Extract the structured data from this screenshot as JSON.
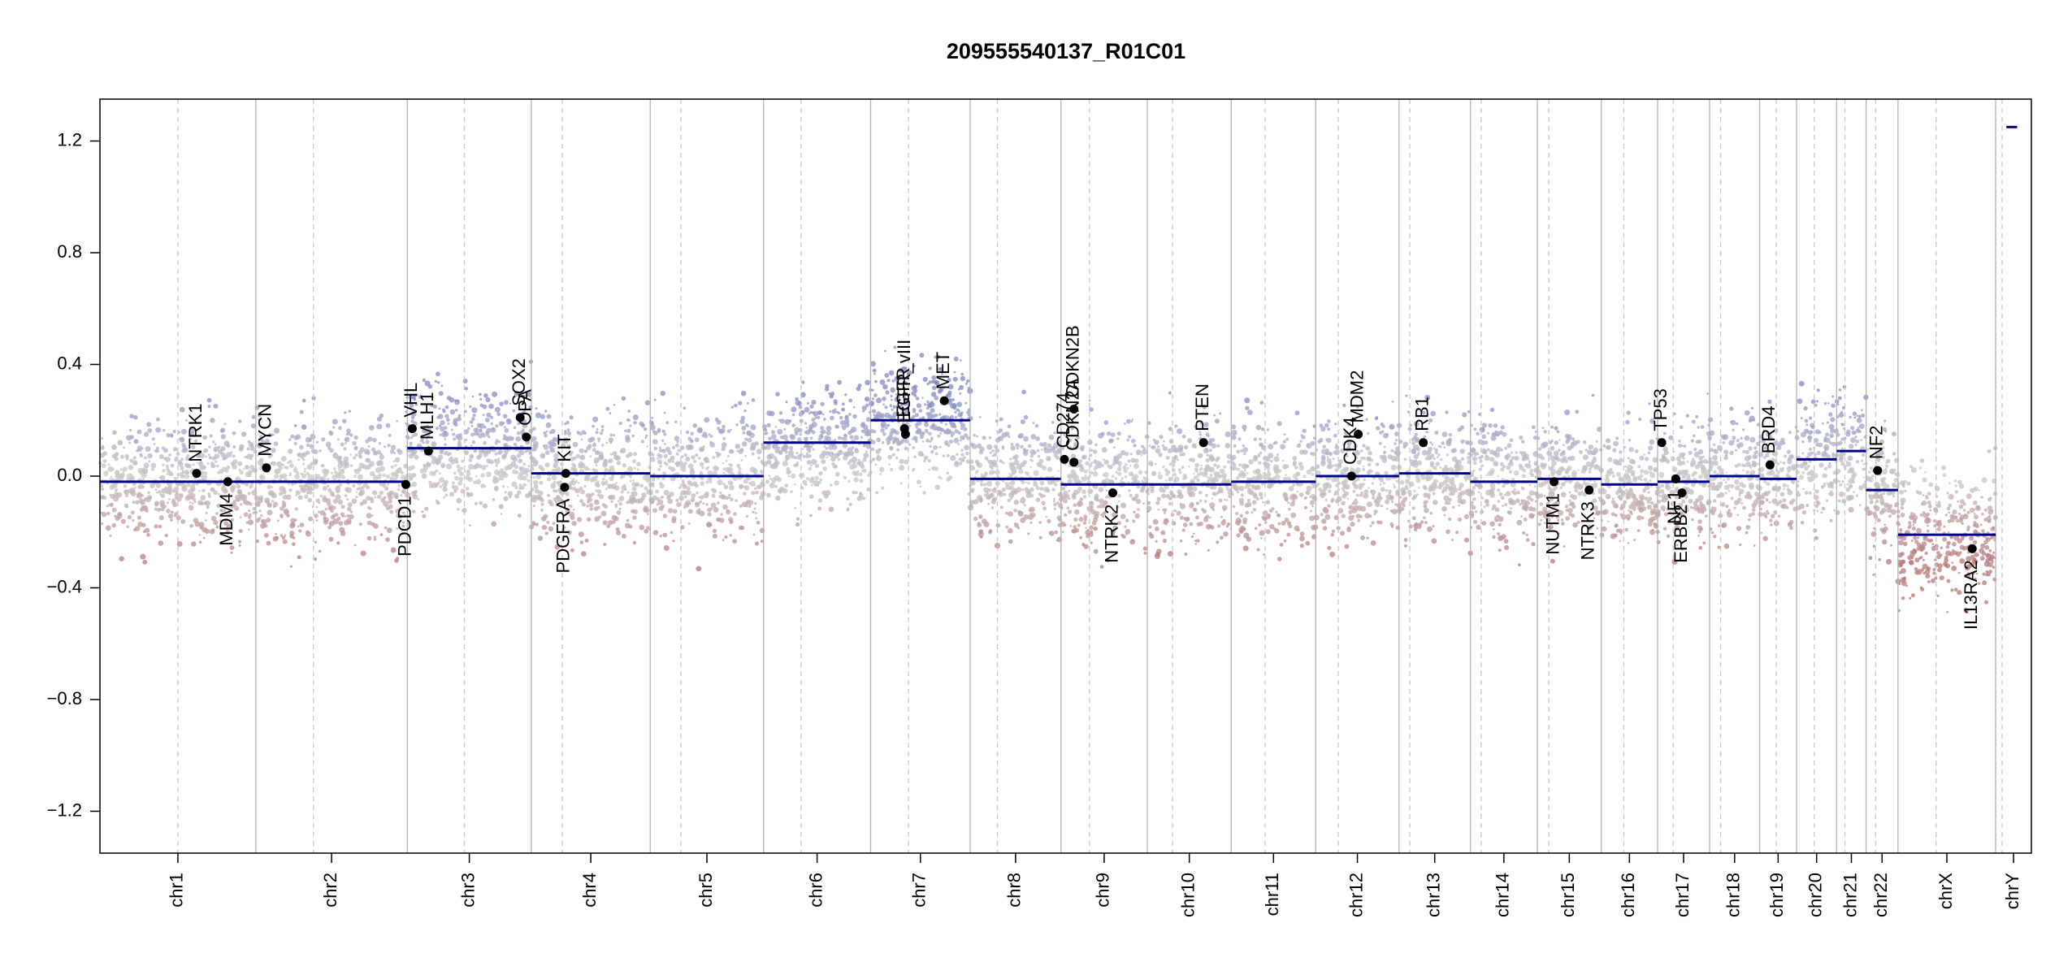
{
  "chart_data": {
    "type": "scatter",
    "title": "209555540137_R01C01",
    "xlabel": "",
    "ylabel": "",
    "ylim": [
      -1.35,
      1.35
    ],
    "y_ticks": [
      "1.2",
      "0.8",
      "0.4",
      "0.0",
      "−0.4",
      "−0.8",
      "−1.2"
    ],
    "y_tick_values": [
      1.2,
      0.8,
      0.4,
      0.0,
      -0.4,
      -0.8,
      -1.2
    ],
    "grid": false,
    "colors": {
      "gain": "#8088c4",
      "neutral": "#c8c8c8",
      "loss": "#b87878",
      "segment": "#00008b",
      "gene_point": "#000000",
      "chrom_line": "#b3b3b3",
      "centromere_line": "#c8c8c8"
    },
    "chromosomes": [
      {
        "name": "chr1",
        "size": 249,
        "cen": 0.5,
        "segments": [
          {
            "from": 0,
            "to": 1,
            "value": -0.02
          }
        ]
      },
      {
        "name": "chr2",
        "size": 242,
        "cen": 0.38,
        "segments": [
          {
            "from": 0,
            "to": 1,
            "value": -0.02
          }
        ]
      },
      {
        "name": "chr3",
        "size": 198,
        "cen": 0.46,
        "segments": [
          {
            "from": 0,
            "to": 1,
            "value": 0.1
          }
        ]
      },
      {
        "name": "chr4",
        "size": 190,
        "cen": 0.26,
        "segments": [
          {
            "from": 0,
            "to": 1,
            "value": 0.01
          }
        ]
      },
      {
        "name": "chr5",
        "size": 181,
        "cen": 0.27,
        "segments": [
          {
            "from": 0,
            "to": 1,
            "value": 0.0
          }
        ]
      },
      {
        "name": "chr6",
        "size": 171,
        "cen": 0.35,
        "segments": [
          {
            "from": 0,
            "to": 1,
            "value": 0.12
          }
        ]
      },
      {
        "name": "chr7",
        "size": 159,
        "cen": 0.38,
        "segments": [
          {
            "from": 0,
            "to": 1,
            "value": 0.2
          }
        ]
      },
      {
        "name": "chr8",
        "size": 145,
        "cen": 0.3,
        "segments": [
          {
            "from": 0,
            "to": 1,
            "value": -0.01
          }
        ]
      },
      {
        "name": "chr9",
        "size": 138,
        "cen": 0.33,
        "segments": [
          {
            "from": 0,
            "to": 1,
            "value": -0.03
          }
        ]
      },
      {
        "name": "chr10",
        "size": 134,
        "cen": 0.3,
        "segments": [
          {
            "from": 0,
            "to": 1,
            "value": -0.03
          }
        ]
      },
      {
        "name": "chr11",
        "size": 135,
        "cen": 0.4,
        "segments": [
          {
            "from": 0,
            "to": 1,
            "value": -0.02
          }
        ]
      },
      {
        "name": "chr12",
        "size": 133,
        "cen": 0.27,
        "segments": [
          {
            "from": 0,
            "to": 1,
            "value": 0.0
          }
        ]
      },
      {
        "name": "chr13",
        "size": 114,
        "cen": 0.15,
        "segments": [
          {
            "from": 0,
            "to": 1,
            "value": 0.01
          }
        ]
      },
      {
        "name": "chr14",
        "size": 107,
        "cen": 0.16,
        "segments": [
          {
            "from": 0,
            "to": 1,
            "value": -0.02
          }
        ]
      },
      {
        "name": "chr15",
        "size": 102,
        "cen": 0.18,
        "segments": [
          {
            "from": 0,
            "to": 1,
            "value": -0.01
          }
        ]
      },
      {
        "name": "chr16",
        "size": 90,
        "cen": 0.4,
        "segments": [
          {
            "from": 0,
            "to": 1,
            "value": -0.03
          }
        ]
      },
      {
        "name": "chr17",
        "size": 83,
        "cen": 0.3,
        "segments": [
          {
            "from": 0,
            "to": 1,
            "value": -0.02
          }
        ]
      },
      {
        "name": "chr18",
        "size": 80,
        "cen": 0.22,
        "segments": [
          {
            "from": 0,
            "to": 1,
            "value": 0.0
          }
        ]
      },
      {
        "name": "chr19",
        "size": 59,
        "cen": 0.45,
        "segments": [
          {
            "from": 0,
            "to": 1,
            "value": -0.01
          }
        ]
      },
      {
        "name": "chr20",
        "size": 64,
        "cen": 0.44,
        "segments": [
          {
            "from": 0,
            "to": 1,
            "value": 0.06
          }
        ]
      },
      {
        "name": "chr21",
        "size": 47,
        "cen": 0.28,
        "segments": [
          {
            "from": 0,
            "to": 1,
            "value": 0.09
          }
        ]
      },
      {
        "name": "chr22",
        "size": 51,
        "cen": 0.3,
        "segments": [
          {
            "from": 0,
            "to": 1,
            "value": -0.05
          }
        ]
      },
      {
        "name": "chrX",
        "size": 156,
        "cen": 0.39,
        "segments": [
          {
            "from": 0,
            "to": 1,
            "value": -0.21
          }
        ]
      },
      {
        "name": "chrY",
        "size": 57,
        "cen": 0.18,
        "segments": [
          {
            "from": 0.3,
            "to": 0.6,
            "value": 1.25
          }
        ]
      }
    ],
    "genes": [
      {
        "name": "NTRK1",
        "chr": "chr1",
        "pos": 0.62,
        "value": 0.01,
        "label": "above"
      },
      {
        "name": "MDM4",
        "chr": "chr1",
        "pos": 0.82,
        "value": -0.02,
        "label": "below"
      },
      {
        "name": "MYCN",
        "chr": "chr2",
        "pos": 0.07,
        "value": 0.03,
        "label": "above"
      },
      {
        "name": "PDCD1",
        "chr": "chr2",
        "pos": 0.99,
        "value": -0.03,
        "label": "below"
      },
      {
        "name": "VHL",
        "chr": "chr3",
        "pos": 0.04,
        "value": 0.17,
        "label": "above"
      },
      {
        "name": "MLH1",
        "chr": "chr3",
        "pos": 0.17,
        "value": 0.09,
        "label": "above"
      },
      {
        "name": "SOX2",
        "chr": "chr3",
        "pos": 0.91,
        "value": 0.21,
        "label": "above"
      },
      {
        "name": "OPA",
        "chr": "chr3",
        "pos": 0.96,
        "value": 0.14,
        "label": "above"
      },
      {
        "name": "KIT",
        "chr": "chr4",
        "pos": 0.29,
        "value": 0.01,
        "label": "above"
      },
      {
        "name": "PDGFRA",
        "chr": "chr4",
        "pos": 0.28,
        "value": -0.04,
        "label": "below"
      },
      {
        "name": "EGFR",
        "chr": "chr7",
        "pos": 0.34,
        "value": 0.17,
        "label": "above"
      },
      {
        "name": "EGFR_vIII",
        "chr": "chr7",
        "pos": 0.35,
        "value": 0.15,
        "label": "above"
      },
      {
        "name": "MET",
        "chr": "chr7",
        "pos": 0.74,
        "value": 0.27,
        "label": "above"
      },
      {
        "name": "CD274",
        "chr": "chr9",
        "pos": 0.04,
        "value": 0.06,
        "label": "above"
      },
      {
        "name": "CDKN2A",
        "chr": "chr9",
        "pos": 0.15,
        "value": 0.05,
        "label": "above"
      },
      {
        "name": "CDKN2B",
        "chr": "chr9",
        "pos": 0.15,
        "value": 0.24,
        "label": "above"
      },
      {
        "name": "NTRK2",
        "chr": "chr9",
        "pos": 0.6,
        "value": -0.06,
        "label": "below"
      },
      {
        "name": "PTEN",
        "chr": "chr10",
        "pos": 0.67,
        "value": 0.12,
        "label": "above"
      },
      {
        "name": "CDK4",
        "chr": "chr12",
        "pos": 0.43,
        "value": 0.0,
        "label": "above"
      },
      {
        "name": "MDM2",
        "chr": "chr12",
        "pos": 0.51,
        "value": 0.15,
        "label": "above"
      },
      {
        "name": "RB1",
        "chr": "chr13",
        "pos": 0.34,
        "value": 0.12,
        "label": "above"
      },
      {
        "name": "NUTM1",
        "chr": "chr15",
        "pos": 0.26,
        "value": -0.02,
        "label": "below"
      },
      {
        "name": "NTRK3",
        "chr": "chr15",
        "pos": 0.81,
        "value": -0.05,
        "label": "below"
      },
      {
        "name": "TP53",
        "chr": "chr17",
        "pos": 0.08,
        "value": 0.12,
        "label": "above"
      },
      {
        "name": "NF1",
        "chr": "chr17",
        "pos": 0.35,
        "value": -0.01,
        "label": "below"
      },
      {
        "name": "ERBB2",
        "chr": "chr17",
        "pos": 0.47,
        "value": -0.06,
        "label": "below"
      },
      {
        "name": "BRD4",
        "chr": "chr19",
        "pos": 0.28,
        "value": 0.04,
        "label": "above"
      },
      {
        "name": "NF2",
        "chr": "chr22",
        "pos": 0.36,
        "value": 0.02,
        "label": "above"
      },
      {
        "name": "IL13RA2",
        "chr": "chrX",
        "pos": 0.76,
        "value": -0.26,
        "label": "below"
      }
    ]
  }
}
